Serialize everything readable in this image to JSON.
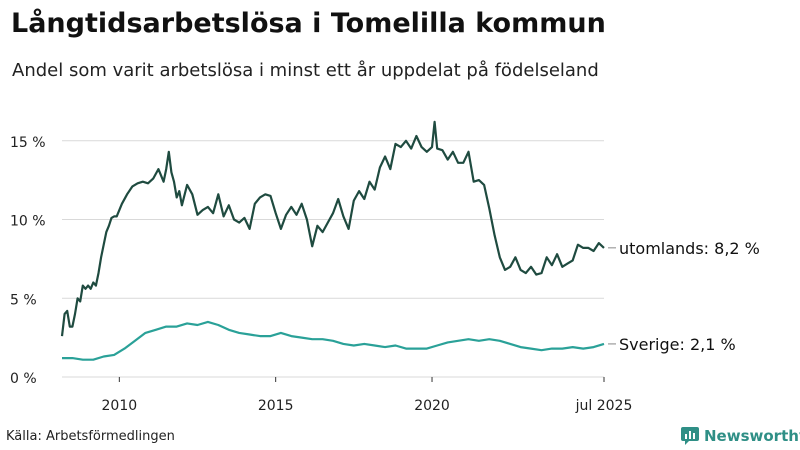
{
  "title": "Långtidsarbetslösa i Tomelilla kommun",
  "subtitle": "Andel som varit arbetslösa i minst ett år uppdelat på födelseland",
  "source": "Källa: Arbetsförmedlingen",
  "brand": {
    "name": "Newsworthy",
    "icon": "bar-chart-icon",
    "color": "#2f8f86"
  },
  "chart_data": {
    "type": "line",
    "x_range": [
      "2008-03",
      "2025-07"
    ],
    "x_ticks": [
      {
        "t": "2010-01",
        "label": "2010"
      },
      {
        "t": "2015-01",
        "label": "2015"
      },
      {
        "t": "2020-01",
        "label": "2020"
      },
      {
        "t": "2025-07",
        "label": "jul 2025"
      }
    ],
    "ylim": [
      0,
      16
    ],
    "y_ticks": [
      {
        "v": 0,
        "label": "0 %"
      },
      {
        "v": 5,
        "label": "5 %"
      },
      {
        "v": 10,
        "label": "10 %"
      },
      {
        "v": 15,
        "label": "15 %"
      }
    ],
    "grid": true,
    "series": [
      {
        "name": "utomlands",
        "end_label": "utomlands: 8,2 %",
        "color": "#1f4b40",
        "points": [
          [
            "2008-03",
            2.6
          ],
          [
            "2008-04",
            4.0
          ],
          [
            "2008-05",
            4.2
          ],
          [
            "2008-06",
            3.2
          ],
          [
            "2008-07",
            3.2
          ],
          [
            "2008-08",
            4.0
          ],
          [
            "2008-09",
            5.0
          ],
          [
            "2008-10",
            4.8
          ],
          [
            "2008-11",
            5.8
          ],
          [
            "2008-12",
            5.6
          ],
          [
            "2009-01",
            5.8
          ],
          [
            "2009-02",
            5.6
          ],
          [
            "2009-03",
            6.0
          ],
          [
            "2009-04",
            5.8
          ],
          [
            "2009-05",
            6.6
          ],
          [
            "2009-06",
            7.6
          ],
          [
            "2009-07",
            8.4
          ],
          [
            "2009-08",
            9.2
          ],
          [
            "2009-09",
            9.6
          ],
          [
            "2009-10",
            10.1
          ],
          [
            "2009-11",
            10.2
          ],
          [
            "2009-12",
            10.2
          ],
          [
            "2010-02",
            11.0
          ],
          [
            "2010-04",
            11.6
          ],
          [
            "2010-06",
            12.1
          ],
          [
            "2010-08",
            12.3
          ],
          [
            "2010-10",
            12.4
          ],
          [
            "2010-12",
            12.3
          ],
          [
            "2011-02",
            12.6
          ],
          [
            "2011-04",
            13.2
          ],
          [
            "2011-06",
            12.4
          ],
          [
            "2011-07",
            13.2
          ],
          [
            "2011-08",
            14.3
          ],
          [
            "2011-09",
            13.0
          ],
          [
            "2011-10",
            12.4
          ],
          [
            "2011-11",
            11.4
          ],
          [
            "2011-12",
            11.8
          ],
          [
            "2012-01",
            10.9
          ],
          [
            "2012-03",
            12.2
          ],
          [
            "2012-05",
            11.6
          ],
          [
            "2012-07",
            10.3
          ],
          [
            "2012-09",
            10.6
          ],
          [
            "2012-11",
            10.8
          ],
          [
            "2013-01",
            10.4
          ],
          [
            "2013-03",
            11.6
          ],
          [
            "2013-05",
            10.2
          ],
          [
            "2013-07",
            10.9
          ],
          [
            "2013-09",
            10.0
          ],
          [
            "2013-11",
            9.8
          ],
          [
            "2014-01",
            10.1
          ],
          [
            "2014-03",
            9.4
          ],
          [
            "2014-05",
            11.0
          ],
          [
            "2014-07",
            11.4
          ],
          [
            "2014-09",
            11.6
          ],
          [
            "2014-11",
            11.5
          ],
          [
            "2015-01",
            10.4
          ],
          [
            "2015-03",
            9.4
          ],
          [
            "2015-05",
            10.3
          ],
          [
            "2015-07",
            10.8
          ],
          [
            "2015-09",
            10.3
          ],
          [
            "2015-11",
            11.0
          ],
          [
            "2016-01",
            10.0
          ],
          [
            "2016-03",
            8.3
          ],
          [
            "2016-05",
            9.6
          ],
          [
            "2016-07",
            9.2
          ],
          [
            "2016-09",
            9.8
          ],
          [
            "2016-11",
            10.4
          ],
          [
            "2017-01",
            11.3
          ],
          [
            "2017-03",
            10.2
          ],
          [
            "2017-05",
            9.4
          ],
          [
            "2017-07",
            11.2
          ],
          [
            "2017-09",
            11.8
          ],
          [
            "2017-11",
            11.3
          ],
          [
            "2018-01",
            12.4
          ],
          [
            "2018-03",
            11.9
          ],
          [
            "2018-05",
            13.3
          ],
          [
            "2018-07",
            14.0
          ],
          [
            "2018-09",
            13.2
          ],
          [
            "2018-11",
            14.8
          ],
          [
            "2019-01",
            14.6
          ],
          [
            "2019-03",
            15.0
          ],
          [
            "2019-05",
            14.5
          ],
          [
            "2019-07",
            15.3
          ],
          [
            "2019-09",
            14.6
          ],
          [
            "2019-11",
            14.3
          ],
          [
            "2020-01",
            14.6
          ],
          [
            "2020-02",
            16.2
          ],
          [
            "2020-03",
            14.5
          ],
          [
            "2020-05",
            14.4
          ],
          [
            "2020-07",
            13.8
          ],
          [
            "2020-09",
            14.3
          ],
          [
            "2020-11",
            13.6
          ],
          [
            "2021-01",
            13.6
          ],
          [
            "2021-03",
            14.3
          ],
          [
            "2021-05",
            12.4
          ],
          [
            "2021-07",
            12.5
          ],
          [
            "2021-09",
            12.2
          ],
          [
            "2021-11",
            10.7
          ],
          [
            "2022-01",
            9.0
          ],
          [
            "2022-03",
            7.6
          ],
          [
            "2022-05",
            6.8
          ],
          [
            "2022-07",
            7.0
          ],
          [
            "2022-09",
            7.6
          ],
          [
            "2022-11",
            6.8
          ],
          [
            "2023-01",
            6.6
          ],
          [
            "2023-03",
            7.0
          ],
          [
            "2023-05",
            6.5
          ],
          [
            "2023-07",
            6.6
          ],
          [
            "2023-09",
            7.6
          ],
          [
            "2023-11",
            7.1
          ],
          [
            "2024-01",
            7.8
          ],
          [
            "2024-03",
            7.0
          ],
          [
            "2024-05",
            7.2
          ],
          [
            "2024-07",
            7.4
          ],
          [
            "2024-09",
            8.4
          ],
          [
            "2024-11",
            8.2
          ],
          [
            "2025-01",
            8.2
          ],
          [
            "2025-03",
            8.0
          ],
          [
            "2025-05",
            8.5
          ],
          [
            "2025-07",
            8.2
          ]
        ]
      },
      {
        "name": "Sverige",
        "end_label": "Sverige: 2,1 %",
        "color": "#2aa198",
        "points": [
          [
            "2008-03",
            1.2
          ],
          [
            "2008-07",
            1.2
          ],
          [
            "2008-11",
            1.1
          ],
          [
            "2009-03",
            1.1
          ],
          [
            "2009-07",
            1.3
          ],
          [
            "2009-11",
            1.4
          ],
          [
            "2010-03",
            1.8
          ],
          [
            "2010-07",
            2.3
          ],
          [
            "2010-11",
            2.8
          ],
          [
            "2011-03",
            3.0
          ],
          [
            "2011-07",
            3.2
          ],
          [
            "2011-11",
            3.2
          ],
          [
            "2012-03",
            3.4
          ],
          [
            "2012-07",
            3.3
          ],
          [
            "2012-11",
            3.5
          ],
          [
            "2013-03",
            3.3
          ],
          [
            "2013-07",
            3.0
          ],
          [
            "2013-11",
            2.8
          ],
          [
            "2014-03",
            2.7
          ],
          [
            "2014-07",
            2.6
          ],
          [
            "2014-11",
            2.6
          ],
          [
            "2015-03",
            2.8
          ],
          [
            "2015-07",
            2.6
          ],
          [
            "2015-11",
            2.5
          ],
          [
            "2016-03",
            2.4
          ],
          [
            "2016-07",
            2.4
          ],
          [
            "2016-11",
            2.3
          ],
          [
            "2017-03",
            2.1
          ],
          [
            "2017-07",
            2.0
          ],
          [
            "2017-11",
            2.1
          ],
          [
            "2018-03",
            2.0
          ],
          [
            "2018-07",
            1.9
          ],
          [
            "2018-11",
            2.0
          ],
          [
            "2019-03",
            1.8
          ],
          [
            "2019-07",
            1.8
          ],
          [
            "2019-11",
            1.8
          ],
          [
            "2020-03",
            2.0
          ],
          [
            "2020-07",
            2.2
          ],
          [
            "2020-11",
            2.3
          ],
          [
            "2021-03",
            2.4
          ],
          [
            "2021-07",
            2.3
          ],
          [
            "2021-11",
            2.4
          ],
          [
            "2022-03",
            2.3
          ],
          [
            "2022-07",
            2.1
          ],
          [
            "2022-11",
            1.9
          ],
          [
            "2023-03",
            1.8
          ],
          [
            "2023-07",
            1.7
          ],
          [
            "2023-11",
            1.8
          ],
          [
            "2024-03",
            1.8
          ],
          [
            "2024-07",
            1.9
          ],
          [
            "2024-11",
            1.8
          ],
          [
            "2025-03",
            1.9
          ],
          [
            "2025-07",
            2.1
          ]
        ]
      }
    ]
  }
}
